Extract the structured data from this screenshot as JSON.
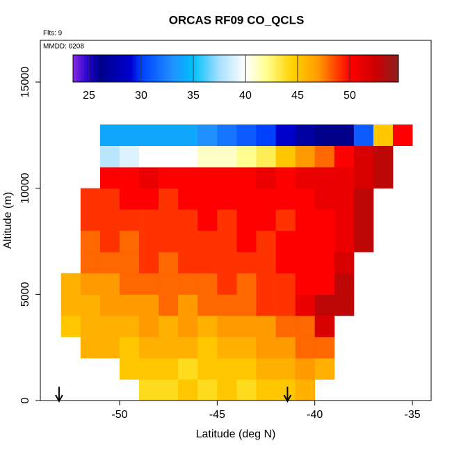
{
  "chart_data": {
    "type": "heatmap",
    "title": "ORCAS RF09 CO_QCLS",
    "annotations": [
      "Flts: 9",
      "MMDD: 0208"
    ],
    "xlabel": "Latitude (deg N)",
    "ylabel": "Altitude (m)",
    "xlim": [
      -54.06,
      -34.04
    ],
    "ylim": [
      0,
      16965
    ],
    "xticks": [
      -50,
      -45,
      -40,
      -35
    ],
    "yticks": [
      0,
      5000,
      10000,
      15000
    ],
    "x_bins": [
      -53,
      -52,
      -51,
      -50,
      -49,
      -48,
      -47,
      -46,
      -45,
      -44,
      -43,
      -42,
      -41,
      -40,
      -39,
      -38,
      -37,
      -36,
      -35
    ],
    "y_bins": [
      0,
      1000,
      2000,
      3000,
      4000,
      5000,
      6000,
      7000,
      8000,
      9000,
      10000,
      11000,
      12000,
      13000
    ],
    "z": [
      [
        null,
        null,
        null,
        null,
        44,
        44,
        45,
        44,
        45,
        44,
        45,
        45,
        46,
        null,
        null,
        null,
        null,
        null
      ],
      [
        null,
        null,
        null,
        45,
        45,
        45,
        44,
        45,
        45,
        45,
        46,
        46,
        47,
        46,
        null,
        null,
        null,
        null
      ],
      [
        null,
        46,
        46,
        45,
        46,
        46,
        46,
        45,
        46,
        46,
        47,
        47,
        48,
        48,
        null,
        null,
        null,
        null
      ],
      [
        45,
        46,
        46,
        46,
        47,
        46,
        47,
        46,
        47,
        47,
        47,
        48,
        48,
        52,
        null,
        null,
        null,
        null
      ],
      [
        46,
        46,
        47,
        47,
        47,
        48,
        47,
        48,
        48,
        48,
        49,
        49,
        51,
        53,
        53,
        null,
        null,
        null
      ],
      [
        46,
        47,
        47,
        48,
        48,
        48,
        48,
        48,
        49,
        48,
        49,
        49,
        50,
        50,
        53,
        null,
        null,
        null
      ],
      [
        null,
        48,
        48,
        48,
        49,
        48,
        49,
        49,
        49,
        49,
        49,
        50,
        50,
        50,
        52,
        null,
        null,
        null
      ],
      [
        null,
        48,
        49,
        48,
        49,
        49,
        49,
        49,
        49,
        50,
        49,
        50,
        50,
        50,
        51,
        53,
        null,
        null
      ],
      [
        null,
        49,
        49,
        49,
        49,
        49,
        49,
        50,
        49,
        50,
        50,
        49,
        50,
        50,
        51,
        53,
        null,
        null
      ],
      [
        null,
        49,
        49,
        50,
        50,
        49,
        50,
        50,
        50,
        50,
        50,
        50,
        50,
        51,
        51,
        53,
        null,
        null
      ],
      [
        null,
        null,
        50,
        50,
        51,
        50,
        50,
        50,
        50,
        50,
        51,
        50,
        51,
        51,
        51,
        52,
        53,
        null
      ],
      [
        null,
        null,
        38,
        39,
        40,
        40,
        40,
        41,
        41,
        42,
        43,
        45,
        47,
        48,
        50,
        52,
        53,
        null
      ],
      [
        null,
        null,
        34,
        34,
        34,
        34,
        34,
        33,
        32,
        31,
        30,
        29,
        27,
        26,
        26,
        31,
        45,
        50
      ]
    ],
    "zlim": [
      23.47,
      54.67
    ],
    "zticks": [
      25,
      30,
      35,
      40,
      45,
      50
    ],
    "colorscale": [
      [
        23.47,
        "#8a2be2"
      ],
      [
        25,
        "#1c00c8"
      ],
      [
        26,
        "#00008b"
      ],
      [
        29,
        "#0000cd"
      ],
      [
        30,
        "#0040ff"
      ],
      [
        33,
        "#2090ff"
      ],
      [
        35,
        "#00bfff"
      ],
      [
        37.5,
        "#a8e0ff"
      ],
      [
        40,
        "#ffffff"
      ],
      [
        42,
        "#ffff90"
      ],
      [
        44.5,
        "#ffd200"
      ],
      [
        47,
        "#ff9a00"
      ],
      [
        50,
        "#ff0000"
      ],
      [
        52.5,
        "#cc0000"
      ],
      [
        54.67,
        "#8b2020"
      ]
    ],
    "markers": [
      -53.1,
      -41.4
    ]
  }
}
